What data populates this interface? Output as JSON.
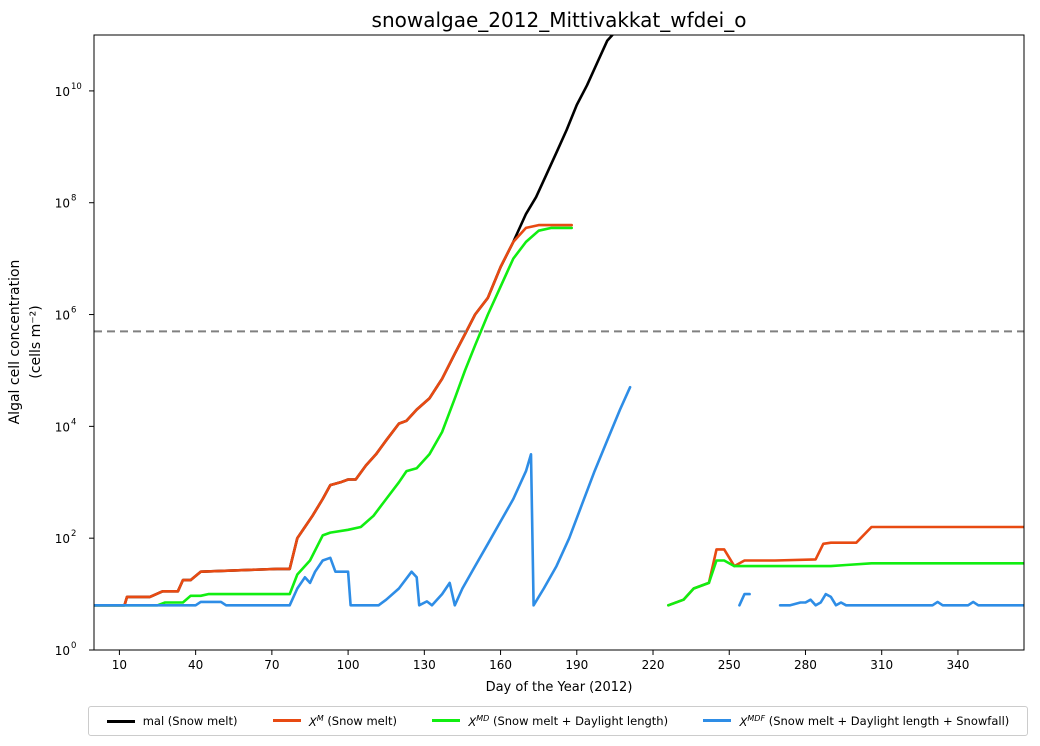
{
  "chart_data": {
    "type": "line",
    "title": "snowalgae_2012_Mittivakkat_wfdei_o",
    "xlabel": "Day of the Year (2012)",
    "ylabel_line1": "Algal cell concentration",
    "ylabel_line2": "(cells m⁻²)",
    "xlim": [
      0,
      366
    ],
    "ylim_log10": [
      0,
      11
    ],
    "yscale": "log",
    "x_ticks": [
      10,
      40,
      70,
      100,
      130,
      160,
      190,
      220,
      250,
      280,
      310,
      340
    ],
    "y_ticks": [
      {
        "base": "10",
        "exp": "0",
        "log": 0
      },
      {
        "base": "10",
        "exp": "2",
        "log": 2
      },
      {
        "base": "10",
        "exp": "4",
        "log": 4
      },
      {
        "base": "10",
        "exp": "6",
        "log": 6
      },
      {
        "base": "10",
        "exp": "8",
        "log": 8
      },
      {
        "base": "10",
        "exp": "10",
        "log": 10
      }
    ],
    "threshold_log10": 5.7,
    "threshold_color": "#808080",
    "grid": false,
    "legend_position": "below",
    "series": [
      {
        "name": "mal (Snow melt)",
        "color": "#000000",
        "segments": [
          [
            [
              0,
              0.8
            ],
            [
              12,
              0.8
            ],
            [
              13,
              0.95
            ],
            [
              22,
              0.95
            ],
            [
              27,
              1.05
            ],
            [
              33,
              1.05
            ],
            [
              35,
              1.25
            ],
            [
              38,
              1.25
            ],
            [
              42,
              1.4
            ],
            [
              72,
              1.45
            ],
            [
              77,
              1.45
            ],
            [
              80,
              2.0
            ],
            [
              83,
              2.2
            ],
            [
              86,
              2.4
            ],
            [
              90,
              2.7
            ],
            [
              93,
              2.95
            ],
            [
              97,
              3.0
            ],
            [
              100,
              3.05
            ],
            [
              103,
              3.05
            ],
            [
              107,
              3.3
            ],
            [
              111,
              3.5
            ],
            [
              115,
              3.75
            ],
            [
              120,
              4.05
            ],
            [
              123,
              4.1
            ],
            [
              127,
              4.3
            ],
            [
              132,
              4.5
            ],
            [
              137,
              4.85
            ],
            [
              142,
              5.3
            ],
            [
              146,
              5.65
            ],
            [
              150,
              6.0
            ],
            [
              155,
              6.3
            ],
            [
              160,
              6.85
            ],
            [
              165,
              7.3
            ],
            [
              170,
              7.8
            ],
            [
              174,
              8.1
            ],
            [
              178,
              8.5
            ],
            [
              182,
              8.9
            ],
            [
              186,
              9.3
            ],
            [
              190,
              9.75
            ],
            [
              194,
              10.1
            ],
            [
              198,
              10.5
            ],
            [
              202,
              10.9
            ],
            [
              204,
              11.0
            ]
          ]
        ]
      },
      {
        "name": "X^M (Snow melt)",
        "sym": "X",
        "sup": "M",
        "rest": "(Snow melt)",
        "color": "#e84a12",
        "segments": [
          [
            [
              0,
              0.8
            ],
            [
              12,
              0.8
            ],
            [
              13,
              0.95
            ],
            [
              22,
              0.95
            ],
            [
              27,
              1.05
            ],
            [
              33,
              1.05
            ],
            [
              35,
              1.25
            ],
            [
              38,
              1.25
            ],
            [
              42,
              1.4
            ],
            [
              72,
              1.45
            ],
            [
              77,
              1.45
            ],
            [
              80,
              2.0
            ],
            [
              83,
              2.2
            ],
            [
              86,
              2.4
            ],
            [
              90,
              2.7
            ],
            [
              93,
              2.95
            ],
            [
              97,
              3.0
            ],
            [
              100,
              3.05
            ],
            [
              103,
              3.05
            ],
            [
              107,
              3.3
            ],
            [
              111,
              3.5
            ],
            [
              115,
              3.75
            ],
            [
              120,
              4.05
            ],
            [
              123,
              4.1
            ],
            [
              127,
              4.3
            ],
            [
              132,
              4.5
            ],
            [
              137,
              4.85
            ],
            [
              142,
              5.3
            ],
            [
              146,
              5.65
            ],
            [
              150,
              6.0
            ],
            [
              155,
              6.3
            ],
            [
              160,
              6.85
            ],
            [
              165,
              7.3
            ],
            [
              170,
              7.55
            ],
            [
              175,
              7.6
            ],
            [
              180,
              7.6
            ],
            [
              185,
              7.6
            ],
            [
              188,
              7.6
            ]
          ],
          [
            [
              226,
              0.8
            ],
            [
              232,
              0.9
            ],
            [
              236,
              1.1
            ],
            [
              242,
              1.2
            ],
            [
              245,
              1.8
            ],
            [
              248,
              1.8
            ],
            [
              252,
              1.5
            ],
            [
              256,
              1.6
            ],
            [
              262,
              1.6
            ],
            [
              268,
              1.6
            ],
            [
              284,
              1.62
            ],
            [
              287,
              1.9
            ],
            [
              290,
              1.92
            ],
            [
              300,
              1.92
            ],
            [
              306,
              2.2
            ],
            [
              308,
              2.2
            ],
            [
              366,
              2.2
            ]
          ]
        ]
      },
      {
        "name": "X^MD (Snow melt + Daylight length)",
        "sym": "X",
        "sup": "MD",
        "rest": "(Snow melt + Daylight length)",
        "color": "#11ee11",
        "segments": [
          [
            [
              0,
              0.8
            ],
            [
              25,
              0.8
            ],
            [
              28,
              0.85
            ],
            [
              35,
              0.85
            ],
            [
              38,
              0.97
            ],
            [
              42,
              0.97
            ],
            [
              45,
              1.0
            ],
            [
              72,
              1.0
            ],
            [
              77,
              1.0
            ],
            [
              80,
              1.35
            ],
            [
              85,
              1.6
            ],
            [
              90,
              2.05
            ],
            [
              93,
              2.1
            ],
            [
              100,
              2.15
            ],
            [
              105,
              2.2
            ],
            [
              110,
              2.4
            ],
            [
              115,
              2.7
            ],
            [
              120,
              3.0
            ],
            [
              123,
              3.2
            ],
            [
              127,
              3.25
            ],
            [
              132,
              3.5
            ],
            [
              137,
              3.9
            ],
            [
              142,
              4.5
            ],
            [
              146,
              5.0
            ],
            [
              150,
              5.45
            ],
            [
              155,
              6.0
            ],
            [
              160,
              6.5
            ],
            [
              165,
              7.0
            ],
            [
              170,
              7.3
            ],
            [
              175,
              7.5
            ],
            [
              180,
              7.55
            ],
            [
              185,
              7.55
            ],
            [
              188,
              7.55
            ]
          ],
          [
            [
              226,
              0.8
            ],
            [
              232,
              0.9
            ],
            [
              236,
              1.1
            ],
            [
              242,
              1.2
            ],
            [
              245,
              1.6
            ],
            [
              248,
              1.6
            ],
            [
              252,
              1.5
            ],
            [
              256,
              1.5
            ],
            [
              262,
              1.5
            ],
            [
              290,
              1.5
            ],
            [
              296,
              1.52
            ],
            [
              306,
              1.55
            ],
            [
              308,
              1.55
            ],
            [
              366,
              1.55
            ]
          ]
        ]
      },
      {
        "name": "X^MDF (Snow melt + Daylight length + Snowfall)",
        "sym": "X",
        "sup": "MDF",
        "rest": "(Snow melt + Daylight length + Snowfall)",
        "color": "#2e8de6",
        "segments": [
          [
            [
              0,
              0.8
            ],
            [
              40,
              0.8
            ],
            [
              42,
              0.86
            ],
            [
              50,
              0.86
            ],
            [
              52,
              0.8
            ],
            [
              77,
              0.8
            ],
            [
              80,
              1.1
            ],
            [
              83,
              1.3
            ],
            [
              85,
              1.2
            ],
            [
              87,
              1.4
            ],
            [
              90,
              1.6
            ],
            [
              93,
              1.65
            ],
            [
              95,
              1.4
            ],
            [
              100,
              1.4
            ],
            [
              101,
              0.8
            ],
            [
              110,
              0.8
            ],
            [
              112,
              0.8
            ],
            [
              115,
              0.9
            ],
            [
              120,
              1.1
            ],
            [
              125,
              1.4
            ],
            [
              127,
              1.3
            ],
            [
              128,
              0.8
            ],
            [
              131,
              0.87
            ],
            [
              133,
              0.8
            ],
            [
              137,
              1.0
            ],
            [
              140,
              1.2
            ],
            [
              142,
              0.8
            ],
            [
              145,
              1.1
            ],
            [
              150,
              1.5
            ],
            [
              155,
              1.9
            ],
            [
              160,
              2.3
            ],
            [
              165,
              2.7
            ],
            [
              170,
              3.2
            ],
            [
              172,
              3.5
            ],
            [
              173,
              0.8
            ],
            [
              177,
              1.1
            ],
            [
              182,
              1.5
            ],
            [
              187,
              2.0
            ],
            [
              192,
              2.6
            ],
            [
              197,
              3.2
            ],
            [
              202,
              3.75
            ],
            [
              207,
              4.3
            ],
            [
              211,
              4.7
            ]
          ],
          [
            [
              254,
              0.8
            ],
            [
              256,
              1.0
            ],
            [
              258,
              1.0
            ]
          ],
          [
            [
              270,
              0.8
            ],
            [
              274,
              0.8
            ],
            [
              278,
              0.85
            ],
            [
              280,
              0.85
            ],
            [
              282,
              0.9
            ],
            [
              284,
              0.8
            ],
            [
              286,
              0.85
            ],
            [
              288,
              1.0
            ],
            [
              290,
              0.95
            ],
            [
              292,
              0.8
            ],
            [
              294,
              0.85
            ],
            [
              296,
              0.8
            ],
            [
              330,
              0.8
            ],
            [
              332,
              0.86
            ],
            [
              334,
              0.8
            ],
            [
              344,
              0.8
            ],
            [
              346,
              0.86
            ],
            [
              348,
              0.8
            ],
            [
              366,
              0.8
            ]
          ]
        ]
      }
    ]
  }
}
